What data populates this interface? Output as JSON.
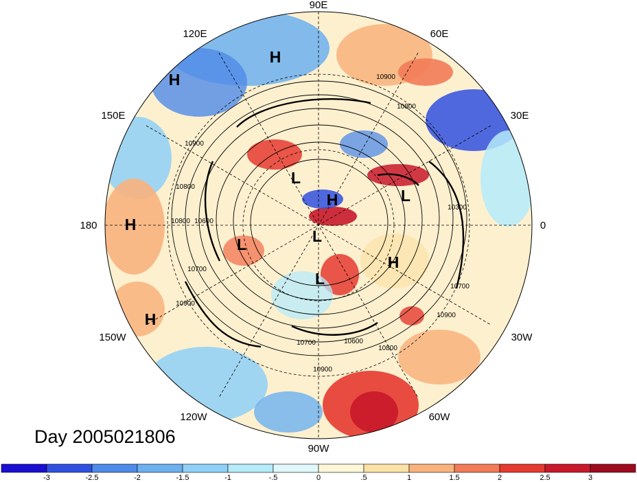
{
  "title": "Day 2005021806",
  "longitude_labels": [
    {
      "text": "90E"
    },
    {
      "text": "60E"
    },
    {
      "text": "30E"
    },
    {
      "text": "0"
    },
    {
      "text": "30W"
    },
    {
      "text": "60W"
    },
    {
      "text": "90W"
    },
    {
      "text": "120W"
    },
    {
      "text": "150W"
    },
    {
      "text": "180"
    },
    {
      "text": "150E"
    },
    {
      "text": "120E"
    }
  ],
  "pressure_centers": [
    {
      "type": "H"
    },
    {
      "type": "H"
    },
    {
      "type": "L"
    },
    {
      "type": "H"
    },
    {
      "type": "L"
    },
    {
      "type": "H"
    },
    {
      "type": "L"
    },
    {
      "type": "L"
    },
    {
      "type": "L"
    },
    {
      "type": "H"
    },
    {
      "type": "H"
    }
  ],
  "contour_labels": [
    {
      "text": "10900"
    },
    {
      "text": "10800"
    },
    {
      "text": "10900"
    },
    {
      "text": "10800"
    },
    {
      "text": "10600"
    },
    {
      "text": "10800"
    },
    {
      "text": "10700"
    },
    {
      "text": "10900"
    },
    {
      "text": "10300"
    },
    {
      "text": "10700"
    },
    {
      "text": "10900"
    },
    {
      "text": "10700"
    },
    {
      "text": "10600"
    },
    {
      "text": "10800"
    },
    {
      "text": "10900"
    }
  ],
  "colorbar": {
    "ticks": [
      "-3",
      "-2.5",
      "-2",
      "-1.5",
      "-1",
      "-.5",
      "0",
      ".5",
      "1",
      "1.5",
      "2",
      "2.5",
      "3"
    ],
    "colors": [
      "#1a0fd1",
      "#3050e0",
      "#4f8be8",
      "#6cb0f0",
      "#8fd0f7",
      "#b5ebfb",
      "#e0f7fb",
      "#fdf7d8",
      "#fbe1a6",
      "#f8b37d",
      "#f27b58",
      "#e53a30",
      "#c8182a",
      "#9e0b1f"
    ]
  }
}
